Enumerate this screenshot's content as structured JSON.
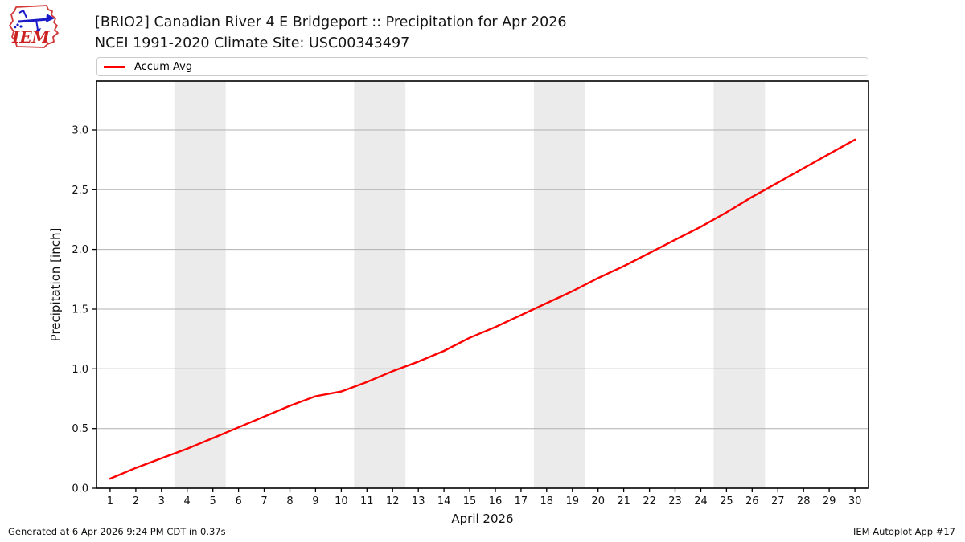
{
  "header": {
    "logo_text": "IEM"
  },
  "legend": {
    "entries": [
      {
        "label": "Accum Avg",
        "color": "#ff0000"
      }
    ]
  },
  "footer": {
    "generated": "Generated at 6 Apr 2026 9:24 PM CDT in 0.37s",
    "app": "IEM Autoplot App #17"
  },
  "chart_data": {
    "type": "line",
    "title": "[BRIO2] Canadian River 4 E Bridgeport :: Precipitation for Apr 2026",
    "subtitle": "NCEI 1991-2020 Climate Site: USC00343497",
    "xlabel": "April 2026",
    "ylabel": "Precipitation [inch]",
    "legend_position": "top",
    "grid": "horizontal",
    "grid_color": "#b0b0b0",
    "band_color": "#ebebeb",
    "xlim": [
      0.47,
      30.53
    ],
    "ylim": [
      0,
      3.41
    ],
    "x": [
      1,
      2,
      3,
      4,
      5,
      6,
      7,
      8,
      9,
      10,
      11,
      12,
      13,
      14,
      15,
      16,
      17,
      18,
      19,
      20,
      21,
      22,
      23,
      24,
      25,
      26,
      27,
      28,
      29,
      30
    ],
    "xtick_labels": [
      "1",
      "2",
      "3",
      "4",
      "5",
      "6",
      "7",
      "8",
      "9",
      "10",
      "11",
      "12",
      "13",
      "14",
      "15",
      "16",
      "17",
      "18",
      "19",
      "20",
      "21",
      "22",
      "23",
      "24",
      "25",
      "26",
      "27",
      "28",
      "29",
      "30"
    ],
    "yticks": [
      0.0,
      0.5,
      1.0,
      1.5,
      2.0,
      2.5,
      3.0
    ],
    "ytick_labels": [
      "0.0",
      "0.5",
      "1.0",
      "1.5",
      "2.0",
      "2.5",
      "3.0"
    ],
    "weekend_bands": [
      [
        3.5,
        5.5
      ],
      [
        10.5,
        12.5
      ],
      [
        17.5,
        19.5
      ],
      [
        24.5,
        26.5
      ]
    ],
    "series": [
      {
        "name": "Accum Avg",
        "color": "#ff0000",
        "values": [
          0.08,
          0.17,
          0.25,
          0.33,
          0.42,
          0.51,
          0.6,
          0.69,
          0.77,
          0.81,
          0.89,
          0.98,
          1.06,
          1.15,
          1.26,
          1.35,
          1.45,
          1.55,
          1.65,
          1.76,
          1.86,
          1.97,
          2.08,
          2.19,
          2.31,
          2.44,
          2.56,
          2.68,
          2.8,
          2.92
        ]
      }
    ]
  }
}
